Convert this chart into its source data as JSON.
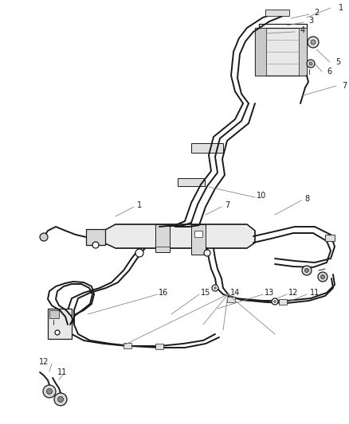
{
  "bg_color": "#ffffff",
  "line_color": "#1a1a1a",
  "leader_color": "#888888",
  "fig_width": 4.38,
  "fig_height": 5.33,
  "dpi": 100,
  "lw_tube": 1.4,
  "lw_part": 0.9,
  "lw_leader": 0.6,
  "fs_label": 7.0
}
